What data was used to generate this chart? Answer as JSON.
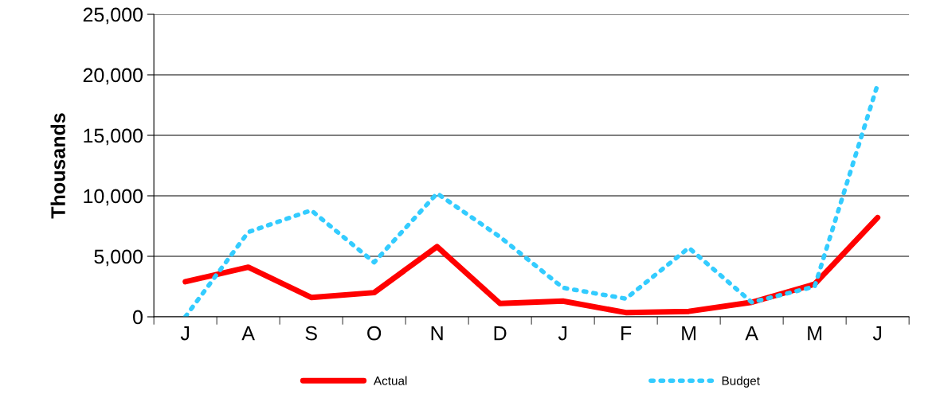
{
  "chart_data": {
    "type": "line",
    "ylabel": "Thousands",
    "categories": [
      "J",
      "A",
      "S",
      "O",
      "N",
      "D",
      "J",
      "F",
      "M",
      "A",
      "M",
      "J"
    ],
    "series": [
      {
        "name": "Actual",
        "color": "#ff0000",
        "line_style": "solid",
        "values": [
          2900,
          4100,
          1600,
          2000,
          5800,
          1100,
          1300,
          350,
          450,
          1200,
          2700,
          8200
        ]
      },
      {
        "name": "Budget",
        "color": "#33ccff",
        "line_style": "dotted",
        "values": [
          0,
          7000,
          8800,
          4500,
          10200,
          6600,
          2400,
          1500,
          5700,
          1200,
          2500,
          19200
        ]
      }
    ],
    "ylim": [
      0,
      25000
    ],
    "yticks": [
      {
        "value": 0,
        "label": "0"
      },
      {
        "value": 5000,
        "label": "5,000"
      },
      {
        "value": 10000,
        "label": "10,000"
      },
      {
        "value": 15000,
        "label": "15,000"
      },
      {
        "value": 20000,
        "label": "20,000"
      },
      {
        "value": 25000,
        "label": "25,000"
      }
    ],
    "grid": "y",
    "legend": "bottom",
    "marker": "none"
  }
}
